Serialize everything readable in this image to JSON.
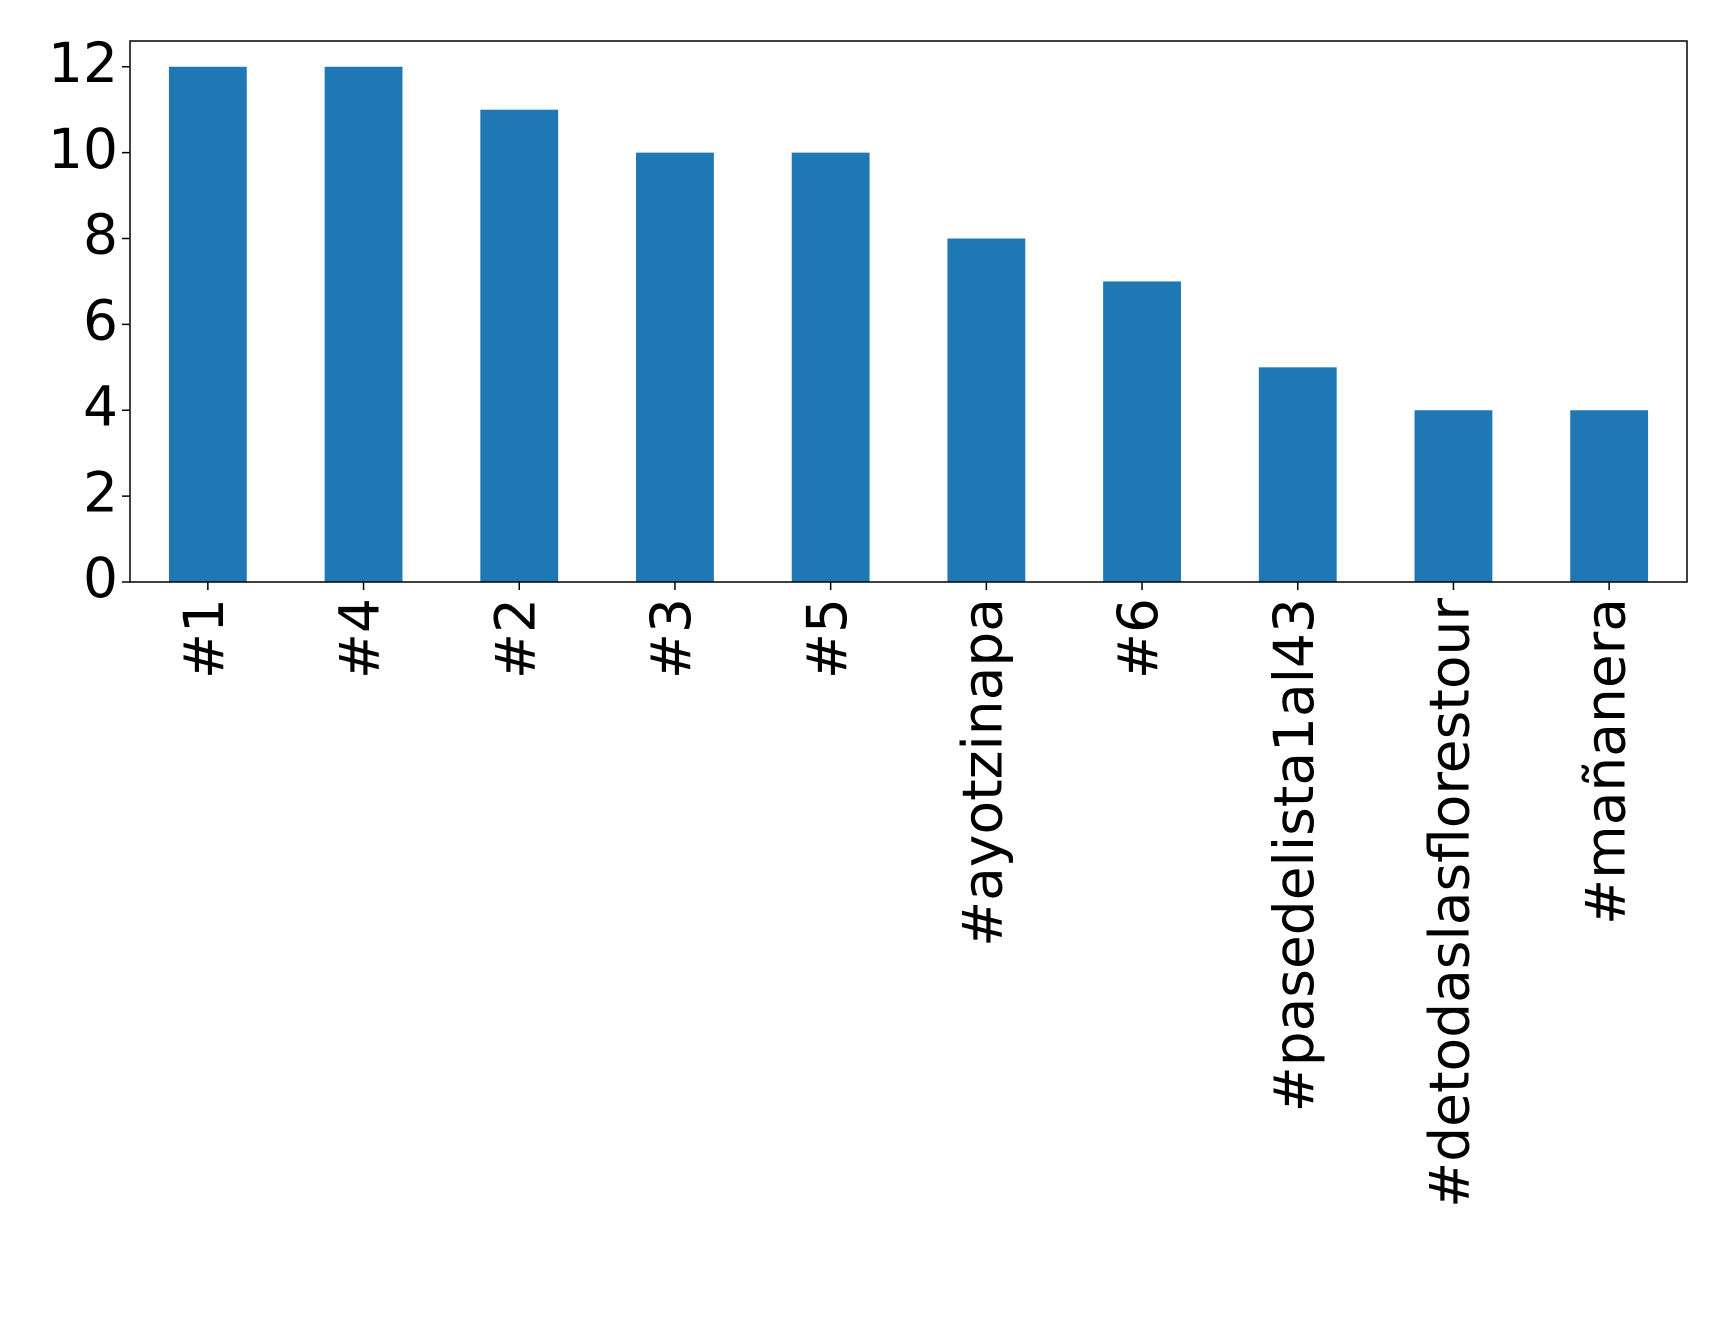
{
  "chart_data": {
    "type": "bar",
    "categories": [
      "#1",
      "#4",
      "#2",
      "#3",
      "#5",
      "#ayotzinapa",
      "#6",
      "#pasedelista1al43",
      "#detodaslasflorestour",
      "#mañanera"
    ],
    "values": [
      12,
      12,
      11,
      10,
      10,
      8,
      7,
      5,
      4,
      4
    ],
    "color": "#1f77b4",
    "ylim": [
      0,
      12.6
    ],
    "yticks": [
      0,
      2,
      4,
      6,
      8,
      10,
      12
    ],
    "grid": false
  }
}
